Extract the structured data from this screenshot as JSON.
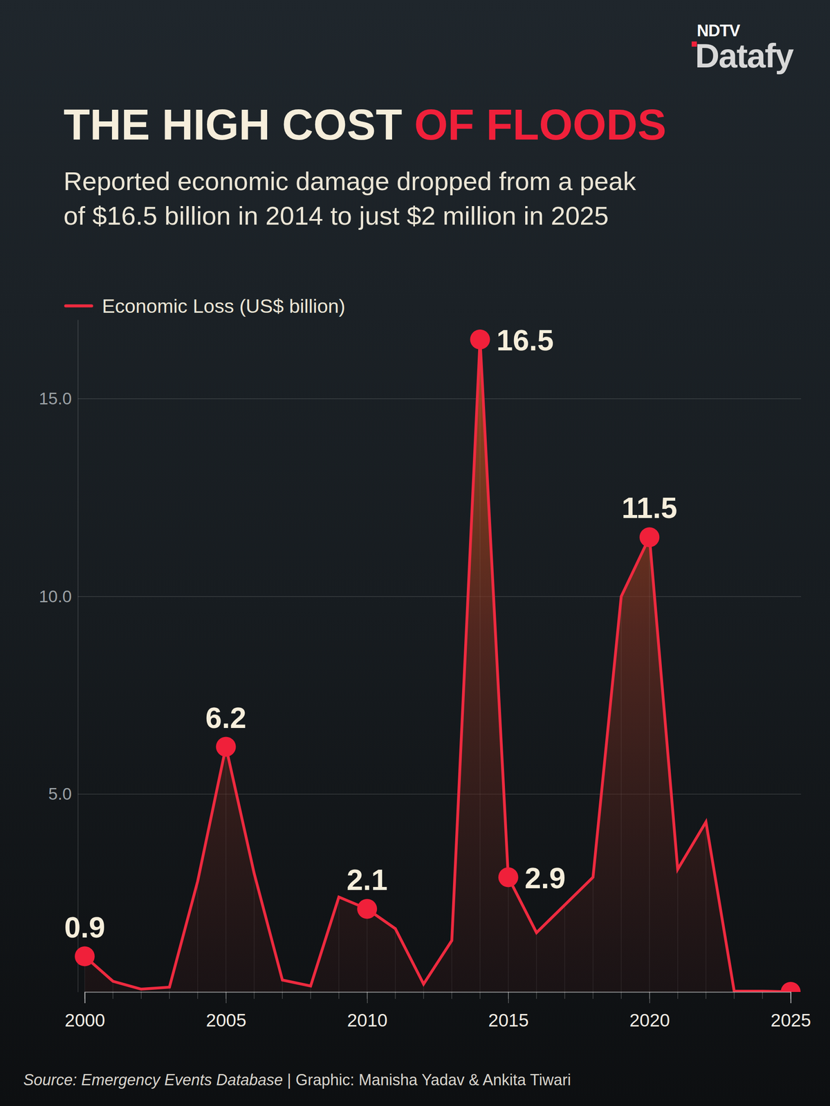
{
  "chart_data": {
    "type": "line",
    "brand": [
      "NDTV",
      "Datafy"
    ],
    "title": [
      "THE HIGH COST",
      "OF FLOODS"
    ],
    "subtitle": [
      "Reported economic damage dropped from a peak",
      "of $16.5 billion in 2014 to just $2 million in 2025"
    ],
    "source": [
      "Source: Emergency Events Database",
      "|",
      "Graphic: Manisha Yadav & Ankita Tiwari"
    ],
    "x": [
      2000,
      2001,
      2002,
      2003,
      2004,
      2005,
      2006,
      2007,
      2008,
      2009,
      2010,
      2011,
      2012,
      2013,
      2014,
      2015,
      2016,
      2017,
      2018,
      2019,
      2020,
      2021,
      2022,
      2023,
      2024,
      2025
    ],
    "series": [
      {
        "name": "Economic Loss (US$ billion)",
        "color": "#ee2a3f",
        "marker": "circle",
        "values": [
          0.9,
          0.27,
          0.07,
          0.12,
          2.8,
          6.2,
          3.0,
          0.3,
          0.15,
          2.4,
          2.1,
          1.6,
          0.2,
          1.3,
          16.5,
          2.9,
          1.5,
          2.2,
          2.9,
          10.0,
          11.5,
          3.1,
          4.3,
          0.02,
          0.02,
          0.002
        ],
        "value_labels": [
          "0.9",
          null,
          null,
          null,
          null,
          "6.2",
          null,
          null,
          null,
          null,
          "2.1",
          null,
          null,
          null,
          "16.5",
          "2.9",
          null,
          null,
          null,
          null,
          "11.5",
          null,
          null,
          null,
          null,
          null
        ]
      }
    ],
    "xlim": [
      2000,
      2025
    ],
    "xticks": [
      2000,
      2005,
      2010,
      2015,
      2020,
      2025
    ],
    "ylim": [
      0,
      17
    ],
    "yticks": [
      {
        "value": 5,
        "label": "5.0"
      },
      {
        "value": 10,
        "label": "10.0"
      },
      {
        "value": 15,
        "label": "15.0"
      }
    ],
    "grid": true,
    "legend": "top-left",
    "data_labels": true
  }
}
